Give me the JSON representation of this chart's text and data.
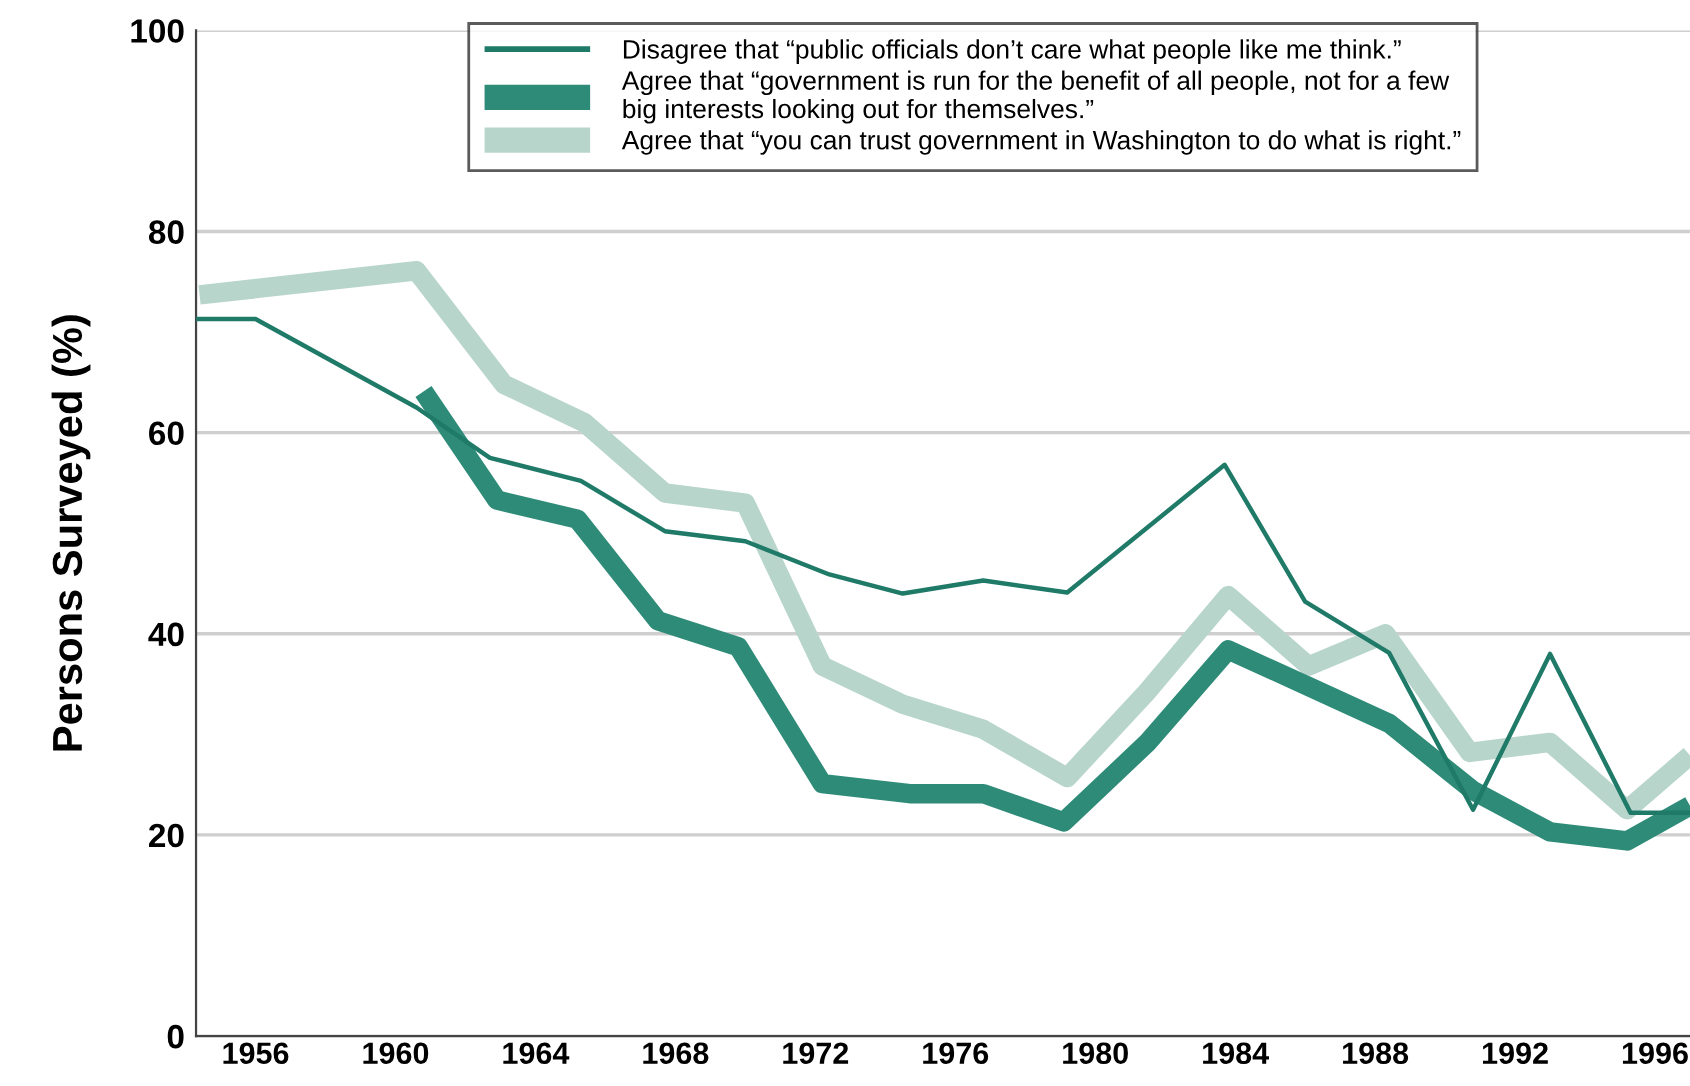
{
  "chart_data": {
    "type": "line",
    "ylabel": "Persons Surveyed (%)",
    "xlim": [
      1954.3,
      1997
    ],
    "xticks": [
      1956,
      1960,
      1964,
      1968,
      1972,
      1976,
      1980,
      1984,
      1988,
      1992,
      1996
    ],
    "ylim": [
      0,
      100
    ],
    "yticks": [
      0,
      20,
      40,
      60,
      80,
      100
    ],
    "grid": "y",
    "legend": "top",
    "marker": "none",
    "line_style": "solid",
    "series": [
      {
        "name": "Disagree that “public officials don’t care what people like me think.”",
        "color": "#1f7a68",
        "x": [
          1954.3,
          1956,
          1960.6,
          1962.7,
          1965.3,
          1967.7,
          1970,
          1972.4,
          1974.5,
          1976.8,
          1979.2,
          1983.7,
          1986,
          1988.4,
          1990.8,
          1993,
          1995.3,
          1997
        ],
        "values": [
          71.3,
          71.3,
          62.5,
          57.5,
          55.2,
          50.2,
          49.2,
          45.9,
          44.0,
          45.3,
          44.1,
          56.8,
          43.2,
          38.1,
          22.5,
          38.0,
          22.2,
          22.2
        ]
      },
      {
        "name": "Agree that “government is run for the benefit of all people, not for a few\nbig interests looking out for themselves.”",
        "color": "#2e8b78",
        "x": [
          1960.8,
          1962.9,
          1965.2,
          1967.5,
          1969.8,
          1972.2,
          1974.7,
          1976.8,
          1979.1,
          1981.5,
          1983.8,
          1986.2,
          1988.4,
          1990.8,
          1993,
          1995.2,
          1997
        ],
        "values": [
          64.1,
          53.3,
          51.4,
          41.3,
          38.7,
          25.1,
          24.1,
          24.1,
          21.3,
          29.2,
          38.4,
          34.6,
          31.1,
          24.4,
          20.3,
          19.4,
          22.9
        ]
      },
      {
        "name": "Agree that “you can trust government in Washington to do what is right.”",
        "color": "#b8d5cc",
        "x": [
          1954.4,
          1960.6,
          1963.1,
          1965.4,
          1967.7,
          1970,
          1972.2,
          1974.5,
          1976.8,
          1979.2,
          1981.5,
          1983.8,
          1986.1,
          1988.3,
          1990.7,
          1993,
          1995.2,
          1997
        ],
        "values": [
          73.7,
          76.1,
          64.8,
          61.0,
          54.0,
          53.0,
          36.8,
          33.0,
          30.5,
          25.7,
          34.3,
          43.8,
          36.8,
          40.0,
          28.2,
          29.2,
          22.5,
          27.9
        ]
      }
    ]
  }
}
